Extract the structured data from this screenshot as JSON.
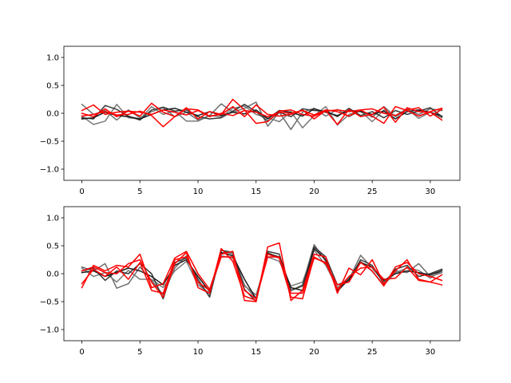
{
  "chart_data": [
    {
      "type": "line",
      "xlim": [
        -1.55,
        32.55
      ],
      "ylim": [
        -1.2,
        1.2
      ],
      "xticks": [
        0,
        5,
        10,
        15,
        20,
        25,
        30
      ],
      "xtick_labels": [
        "0",
        "5",
        "10",
        "15",
        "20",
        "25",
        "30"
      ],
      "yticks": [
        1.0,
        0.5,
        0.0,
        -0.5,
        -1.0
      ],
      "ytick_labels": [
        "1.0",
        "0.5",
        "0.0",
        "−0.5",
        "−1.0"
      ],
      "grid": false,
      "x": [
        0,
        1,
        2,
        3,
        4,
        5,
        6,
        7,
        8,
        9,
        10,
        11,
        12,
        13,
        14,
        15,
        16,
        17,
        18,
        19,
        20,
        21,
        22,
        23,
        24,
        25,
        26,
        27,
        28,
        29,
        30,
        31
      ],
      "series": [
        {
          "color": "#6e6e6e",
          "values": [
            0.16,
            -0.02,
            0.05,
            -0.12,
            0.06,
            -0.08,
            0.03,
            0.1,
            -0.06,
            0.02,
            -0.12,
            -0.04,
            0.17,
            0.02,
            0.09,
            0.2,
            -0.23,
            0.02,
            -0.29,
            0.02,
            0.09,
            -0.05,
            0.07,
            -0.06,
            0.05,
            -0.07,
            0.12,
            -0.06,
            0.06,
            -0.02,
            0.08,
            0.05
          ]
        },
        {
          "color": "#7a7a7a",
          "values": [
            -0.05,
            -0.2,
            -0.14,
            0.16,
            -0.08,
            -0.1,
            0.12,
            -0.02,
            0.04,
            -0.14,
            -0.14,
            -0.04,
            -0.06,
            0.09,
            0.13,
            -0.02,
            -0.08,
            -0.15,
            0.03,
            -0.26,
            -0.04,
            0.12,
            -0.21,
            -0.02,
            0.04,
            -0.15,
            0.06,
            -0.04,
            0.08,
            -0.09,
            0.02,
            -0.08
          ]
        },
        {
          "color": "#3a3a3a",
          "values": [
            -0.08,
            -0.1,
            0.14,
            0.07,
            -0.05,
            -0.12,
            0.06,
            0.11,
            0.04,
            0.06,
            -0.06,
            -0.1,
            -0.08,
            0.04,
            0.16,
            0.03,
            -0.14,
            0.02,
            -0.06,
            0.08,
            0.05,
            0.04,
            -0.06,
            0.09,
            -0.04,
            0.03,
            -0.08,
            0.05,
            -0.02,
            0.04,
            0.1,
            -0.06
          ]
        },
        {
          "color": "#1e1e1e",
          "values": [
            -0.1,
            -0.08,
            0.02,
            -0.04,
            -0.06,
            -0.1,
            -0.02,
            0.06,
            0.09,
            0.02,
            -0.04,
            0.03,
            -0.04,
            0.02,
            -0.01,
            0.06,
            -0.1,
            0.05,
            0.02,
            -0.05,
            0.08,
            0.02,
            -0.04,
            0.05,
            0.03,
            -0.02,
            0.04,
            -0.1,
            0.03,
            0.06,
            0.02,
            -0.05
          ]
        },
        {
          "color": "#ff0000",
          "values": [
            0.05,
            0.15,
            -0.02,
            0.02,
            0.04,
            -0.05,
            0.18,
            0.02,
            -0.06,
            0.1,
            -0.1,
            0.03,
            -0.02,
            0.25,
            0.06,
            -0.18,
            -0.15,
            0.04,
            0.06,
            -0.02,
            -0.05,
            0.04,
            0.06,
            0.03,
            0.06,
            -0.05,
            -0.18,
            0.12,
            0.05,
            -0.05,
            0.03,
            0.09
          ]
        },
        {
          "color": "#ff0000",
          "values": [
            -0.05,
            -0.02,
            0.03,
            -0.03,
            -0.02,
            0.04,
            -0.04,
            -0.24,
            -0.06,
            0.08,
            0.06,
            -0.05,
            -0.02,
            0.12,
            -0.06,
            0.15,
            -0.02,
            -0.05,
            -0.02,
            0.06,
            -0.1,
            0.05,
            -0.2,
            0.07,
            -0.06,
            -0.02,
            0.11,
            -0.16,
            0.1,
            0.03,
            0.02,
            -0.12
          ]
        },
        {
          "color": "#ff0000",
          "values": [
            0.0,
            -0.06,
            0.08,
            -0.06,
            0.04,
            0.02,
            -0.02,
            0.06,
            0.02,
            -0.03,
            0.05,
            -0.06,
            0.0,
            -0.04,
            0.05,
            0.02,
            -0.06,
            0.02,
            0.0,
            0.05,
            -0.03,
            0.06,
            0.03,
            -0.05,
            0.06,
            0.08,
            0.0,
            -0.04,
            0.06,
            0.1,
            -0.05,
            0.07
          ]
        }
      ]
    },
    {
      "type": "line",
      "xlim": [
        -1.55,
        32.55
      ],
      "ylim": [
        -1.2,
        1.2
      ],
      "xticks": [
        0,
        5,
        10,
        15,
        20,
        25,
        30
      ],
      "xtick_labels": [
        "0",
        "5",
        "10",
        "15",
        "20",
        "25",
        "30"
      ],
      "yticks": [
        1.0,
        0.5,
        0.0,
        -0.5,
        -1.0
      ],
      "ytick_labels": [
        "1.0",
        "0.5",
        "0.0",
        "−0.5",
        "−1.0"
      ],
      "grid": false,
      "x": [
        0,
        1,
        2,
        3,
        4,
        5,
        6,
        7,
        8,
        9,
        10,
        11,
        12,
        13,
        14,
        15,
        16,
        17,
        18,
        19,
        20,
        21,
        22,
        23,
        24,
        25,
        26,
        27,
        28,
        29,
        30,
        31
      ],
      "series": [
        {
          "color": "#6e6e6e",
          "values": [
            0.12,
            0.05,
            0.18,
            -0.26,
            -0.18,
            0.12,
            -0.12,
            -0.38,
            0.1,
            0.32,
            -0.15,
            -0.4,
            0.42,
            0.35,
            -0.2,
            -0.45,
            0.38,
            0.28,
            -0.3,
            -0.2,
            0.52,
            0.22,
            -0.32,
            -0.1,
            0.33,
            0.1,
            -0.15,
            0.05,
            0.02,
            0.18,
            -0.05,
            0.02
          ]
        },
        {
          "color": "#7a7a7a",
          "values": [
            0.1,
            -0.05,
            0.02,
            -0.15,
            0.06,
            -0.1,
            -0.1,
            -0.25,
            0.05,
            0.22,
            -0.2,
            -0.35,
            0.32,
            0.28,
            -0.22,
            -0.38,
            0.3,
            0.22,
            -0.22,
            -0.15,
            0.42,
            0.15,
            -0.25,
            -0.08,
            0.22,
            0.04,
            -0.2,
            0.02,
            0.1,
            0.06,
            -0.08,
            0.06
          ]
        },
        {
          "color": "#3a3a3a",
          "values": [
            0.05,
            0.1,
            -0.12,
            0.05,
            0.0,
            0.18,
            0.0,
            -0.45,
            0.2,
            0.28,
            -0.1,
            -0.42,
            0.42,
            0.38,
            -0.28,
            -0.5,
            0.4,
            0.35,
            -0.3,
            -0.22,
            0.48,
            0.3,
            -0.2,
            -0.12,
            0.25,
            0.15,
            -0.18,
            0.08,
            0.15,
            -0.05,
            0.0,
            0.08
          ]
        },
        {
          "color": "#1e1e1e",
          "values": [
            0.02,
            0.05,
            -0.05,
            0.02,
            0.1,
            0.05,
            -0.05,
            -0.2,
            0.15,
            0.25,
            -0.05,
            -0.32,
            0.38,
            0.32,
            -0.1,
            -0.45,
            0.36,
            0.3,
            -0.25,
            -0.3,
            0.45,
            0.25,
            -0.3,
            -0.1,
            0.2,
            0.12,
            -0.12,
            0.0,
            0.05,
            0.02,
            -0.02,
            0.05
          ]
        },
        {
          "color": "#ff0000",
          "values": [
            -0.25,
            0.15,
            0.05,
            0.15,
            0.12,
            0.35,
            -0.25,
            -0.18,
            0.28,
            0.4,
            0.0,
            -0.28,
            0.35,
            0.4,
            -0.48,
            -0.5,
            0.48,
            0.55,
            -0.48,
            -0.3,
            0.35,
            0.3,
            -0.35,
            0.1,
            -0.02,
            0.25,
            -0.18,
            0.05,
            0.25,
            -0.1,
            -0.15,
            -0.2
          ]
        },
        {
          "color": "#ff0000",
          "values": [
            0.05,
            0.12,
            0.02,
            0.0,
            0.18,
            0.25,
            -0.15,
            -0.42,
            0.18,
            0.38,
            -0.25,
            -0.35,
            0.45,
            0.22,
            -0.4,
            -0.48,
            0.35,
            0.28,
            -0.42,
            -0.45,
            0.3,
            0.18,
            -0.2,
            -0.15,
            0.2,
            0.05,
            -0.22,
            0.12,
            0.2,
            0.0,
            -0.05,
            -0.12
          ]
        },
        {
          "color": "#ff0000",
          "values": [
            -0.18,
            0.08,
            -0.05,
            0.12,
            -0.1,
            0.2,
            -0.3,
            -0.35,
            0.25,
            0.3,
            -0.15,
            -0.3,
            0.3,
            0.3,
            -0.3,
            -0.45,
            0.3,
            0.3,
            -0.35,
            -0.35,
            0.28,
            0.2,
            -0.28,
            -0.05,
            0.1,
            0.12,
            -0.1,
            -0.08,
            0.12,
            -0.12,
            -0.15,
            -0.02
          ]
        }
      ]
    }
  ]
}
